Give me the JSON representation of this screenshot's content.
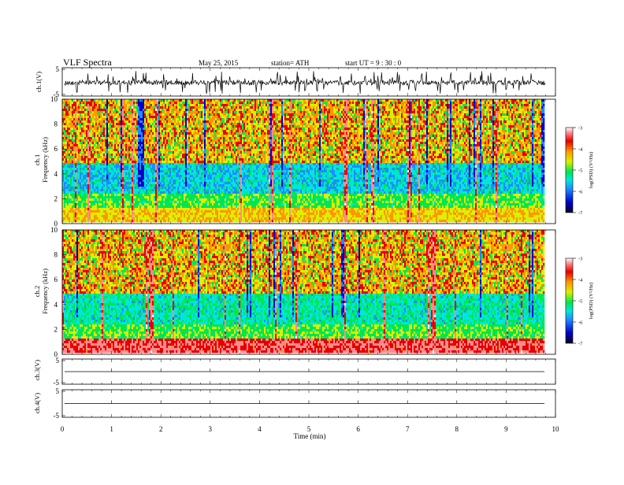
{
  "header": {
    "title": "VLF  Spectra",
    "date": "May 25, 2015",
    "station": "station= ATH",
    "start": "start  UT  =   9  : 30 : 0"
  },
  "chart_data": [
    {
      "type": "line",
      "panel": "ch1-waveform",
      "ylabel": "ch.1(V)",
      "ylim": [
        -5,
        5
      ],
      "yticks": [
        5,
        -5
      ],
      "xlim": [
        0,
        10
      ],
      "x_end": 9.8,
      "description_values": {
        "baseline": 0.0,
        "noise_amplitude": 1.2,
        "spike_amplitude": 4.0
      }
    },
    {
      "type": "heatmap",
      "panel": "ch1-spectrogram",
      "ylabel": "ch.1",
      "ylabel2": "Frequency  (kHz)",
      "ylim": [
        0,
        10
      ],
      "yticks": [
        "0",
        "2",
        "4",
        "6",
        "8",
        "10"
      ],
      "xlim": [
        0,
        10
      ],
      "x_end": 9.8,
      "colorbar": {
        "label": "log(PSD) (V²/Hz)",
        "range": [
          -7,
          -3
        ],
        "ticks": [
          "-3",
          "-4",
          "-5",
          "-6",
          "-7"
        ]
      }
    },
    {
      "type": "heatmap",
      "panel": "ch2-spectrogram",
      "ylabel": "ch.2",
      "ylabel2": "Frequency  (kHz)",
      "ylim": [
        0,
        10
      ],
      "yticks": [
        "0",
        "2",
        "4",
        "6",
        "8",
        "10"
      ],
      "xlim": [
        0,
        10
      ],
      "x_end": 9.8,
      "colorbar": {
        "label": "log(PSD) (V²/Hz)",
        "range": [
          -7,
          -3
        ],
        "ticks": [
          "-3",
          "-4",
          "-5",
          "-6",
          "-7"
        ]
      }
    },
    {
      "type": "line",
      "panel": "ch3-waveform",
      "ylabel": "ch.3(V)",
      "ylim": [
        -5,
        5
      ],
      "yticks": [
        5,
        -5
      ],
      "xlim": [
        0,
        10
      ],
      "x_end": 9.8,
      "description_values": {
        "baseline": 0.0
      }
    },
    {
      "type": "line",
      "panel": "ch4-waveform",
      "ylabel": "ch.4(V)",
      "ylim": [
        -5,
        5
      ],
      "yticks": [
        5,
        -5
      ],
      "xlim": [
        0,
        10
      ],
      "x_end": 9.8,
      "description_values": {
        "baseline": 0.0
      }
    }
  ],
  "xaxis": {
    "label": "Time  (min)",
    "ticks": [
      "0",
      "1",
      "2",
      "3",
      "4",
      "5",
      "6",
      "7",
      "8",
      "9",
      "10"
    ]
  },
  "colors": {
    "axis": "#000000",
    "colormap": [
      "#00001a",
      "#0000c8",
      "#1e8cff",
      "#00e6dc",
      "#00e650",
      "#dcf000",
      "#ff9600",
      "#e60000",
      "#ff8c8c",
      "#ffffff"
    ]
  }
}
